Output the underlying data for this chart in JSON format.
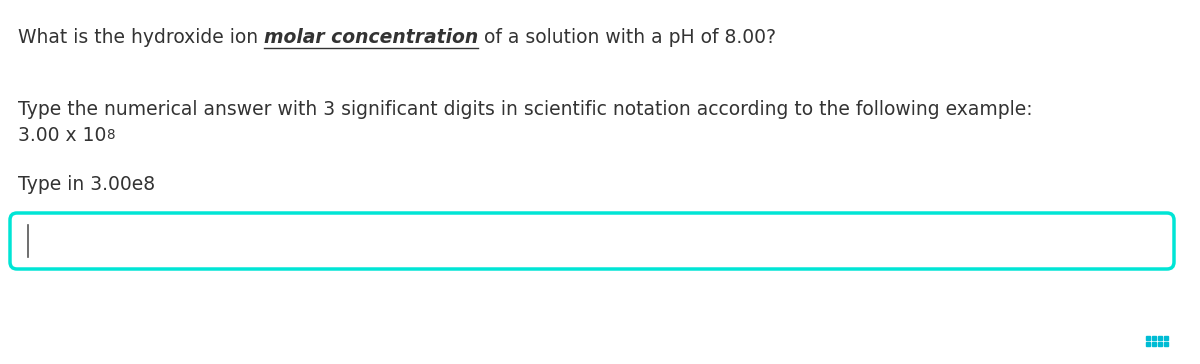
{
  "line1_normal1": "What is the hydroxide ion ",
  "line1_bold_italic_underline": "molar concentration",
  "line1_normal2": " of a solution with a pH of 8.00?",
  "line2": "Type the numerical answer with 3 significant digits in scientific notation according to the following example:",
  "line3_base": "3.00 x 10",
  "line3_superscript": "8",
  "line4": "Type in 3.00e8",
  "input_box_color": "#00E5D5",
  "cursor_color": "#555555",
  "text_color": "#333333",
  "bg_color": "#ffffff",
  "font_size": 13.5,
  "dots_color": "#00BCD4"
}
